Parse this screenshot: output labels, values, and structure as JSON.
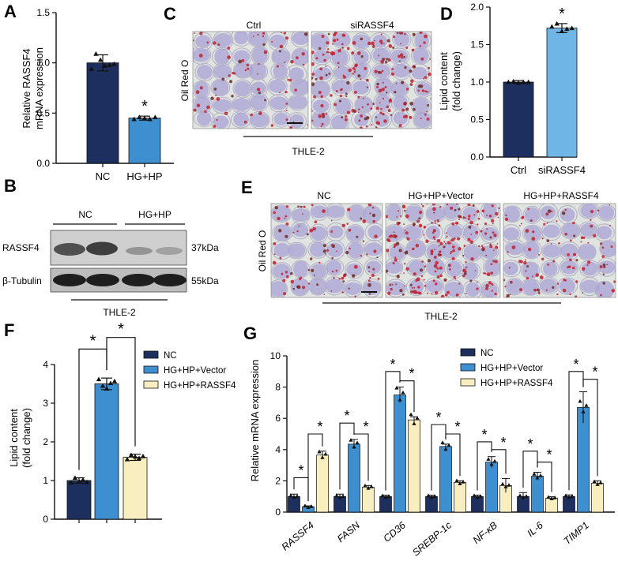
{
  "colors": {
    "nc": "#1c2f5e",
    "treat": "#3e8fd0",
    "treat_light": "#6fb5e6",
    "rassf4_rescue": "#f8eec0",
    "axis": "#111111"
  },
  "panels": {
    "A": {
      "letter": "A",
      "ylabel_line1": "Relative RASSF4",
      "ylabel_line2": "mRNA expression"
    },
    "B": {
      "letter": "B",
      "group_nc": "NC",
      "group_hg": "HG+HP",
      "row1_label": "RASSF4",
      "row1_size": "37kDa",
      "row2_label": "β-Tubulin",
      "row2_size": "55kDa",
      "cell_line": "THLE-2"
    },
    "C": {
      "letter": "C",
      "col1": "Ctrl",
      "col2": "siRASSF4",
      "stain": "Oil Red O",
      "cell_line": "THLE-2"
    },
    "D": {
      "letter": "D",
      "ylabel_line1": "Lipid content",
      "ylabel_line2": "(fold change)"
    },
    "E": {
      "letter": "E",
      "col1": "NC",
      "col2": "HG+HP+Vector",
      "col3": "HG+HP+RASSF4",
      "stain": "Oil Red O",
      "cell_line": "THLE-2"
    },
    "F": {
      "letter": "F",
      "ylabel_line1": "Lipid content",
      "ylabel_line2": "(fold change)"
    },
    "G": {
      "letter": "G",
      "ylabel": "Relative mRNA expression"
    }
  },
  "chart_data": [
    {
      "panel": "A",
      "type": "bar",
      "categories": [
        "NC",
        "HG+HP"
      ],
      "values": [
        1.0,
        0.45
      ],
      "errors": [
        0.08,
        0.02
      ],
      "points": [
        [
          0.94,
          1.09,
          1.03,
          0.97,
          0.98,
          0.99
        ],
        [
          0.44,
          0.46,
          0.45,
          0.44,
          0.46
        ]
      ],
      "ylim": [
        0.0,
        1.5
      ],
      "yticks": [
        "0.0",
        "0.5",
        "1.0",
        "1.5"
      ],
      "significance": [
        "",
        "*"
      ]
    },
    {
      "panel": "D",
      "type": "bar",
      "categories": [
        "Ctrl",
        "siRASSF4"
      ],
      "values": [
        1.0,
        1.72
      ],
      "errors": [
        0.02,
        0.06
      ],
      "points": [
        [
          1.0,
          1.01,
          0.99,
          1.0,
          1.0
        ],
        [
          1.74,
          1.78,
          1.68,
          1.71,
          1.72
        ]
      ],
      "ylim": [
        0.0,
        2.0
      ],
      "yticks": [
        "0.0",
        "0.5",
        "1.0",
        "1.5",
        "2.0"
      ],
      "significance": [
        "",
        "*"
      ]
    },
    {
      "panel": "F",
      "type": "bar",
      "categories": [
        "NC",
        "HG+HP+Vector",
        "HG+HP+RASSF4"
      ],
      "values": [
        1.0,
        3.5,
        1.6
      ],
      "errors": [
        0.07,
        0.15,
        0.08
      ],
      "points": [
        [
          0.95,
          1.07,
          0.98,
          1.02,
          0.96
        ],
        [
          3.62,
          3.45,
          3.38,
          3.52,
          3.57
        ],
        [
          1.55,
          1.66,
          1.62,
          1.58,
          1.63
        ]
      ],
      "ylim": [
        0,
        4
      ],
      "yticks": [
        "0",
        "1",
        "2",
        "3",
        "4"
      ],
      "legend": [
        "NC",
        "HG+HP+Vector",
        "HG+HP+RASSF4"
      ],
      "brackets": [
        {
          "from": 0,
          "to": 1,
          "height": 4.4,
          "label": "*"
        },
        {
          "from": 1,
          "to": 2,
          "height": 4.7,
          "label": "*"
        }
      ]
    },
    {
      "panel": "G",
      "type": "bar",
      "categories": [
        "RASSF4",
        "FASN",
        "CD36",
        "SREBP-1c",
        "NF-κB",
        "IL-6",
        "TIMP1"
      ],
      "ylim": [
        0,
        10
      ],
      "yticks": [
        "0",
        "2",
        "4",
        "6",
        "8",
        "10"
      ],
      "series": [
        {
          "name": "NC",
          "values": [
            1.0,
            1.0,
            1.0,
            1.0,
            1.0,
            1.0,
            1.0
          ],
          "errors": [
            0.15,
            0.15,
            0.08,
            0.08,
            0.08,
            0.25,
            0.1
          ]
        },
        {
          "name": "HG+HP+Vector",
          "values": [
            0.35,
            4.35,
            7.5,
            4.2,
            3.2,
            2.3,
            6.7
          ],
          "errors": [
            0.05,
            0.3,
            0.5,
            0.15,
            0.35,
            0.25,
            1.0
          ]
        },
        {
          "name": "HG+HP+RASSF4",
          "values": [
            3.65,
            1.6,
            5.9,
            1.9,
            1.7,
            0.9,
            1.85
          ],
          "errors": [
            0.25,
            0.1,
            0.2,
            0.1,
            0.45,
            0.08,
            0.15
          ]
        }
      ],
      "brackets": [
        [
          {
            "height": 2.2,
            "label": "*"
          },
          {
            "height": 5.0,
            "label": "*"
          }
        ],
        [
          {
            "height": 5.7,
            "label": "*"
          },
          {
            "height": 5.0,
            "label": "*"
          }
        ],
        [
          {
            "height": 9.0,
            "label": "*"
          },
          {
            "height": 8.4,
            "label": "*"
          }
        ],
        [
          {
            "height": 5.6,
            "label": "*"
          },
          {
            "height": 5.0,
            "label": "*"
          }
        ],
        [
          {
            "height": 4.5,
            "label": "*"
          },
          {
            "height": 4.0,
            "label": "*"
          }
        ],
        [
          {
            "height": 3.9,
            "label": "*"
          },
          {
            "height": 3.2,
            "label": "*"
          }
        ],
        [
          {
            "height": 9.0,
            "label": "*"
          },
          {
            "height": 8.5,
            "label": "*"
          }
        ]
      ]
    }
  ]
}
